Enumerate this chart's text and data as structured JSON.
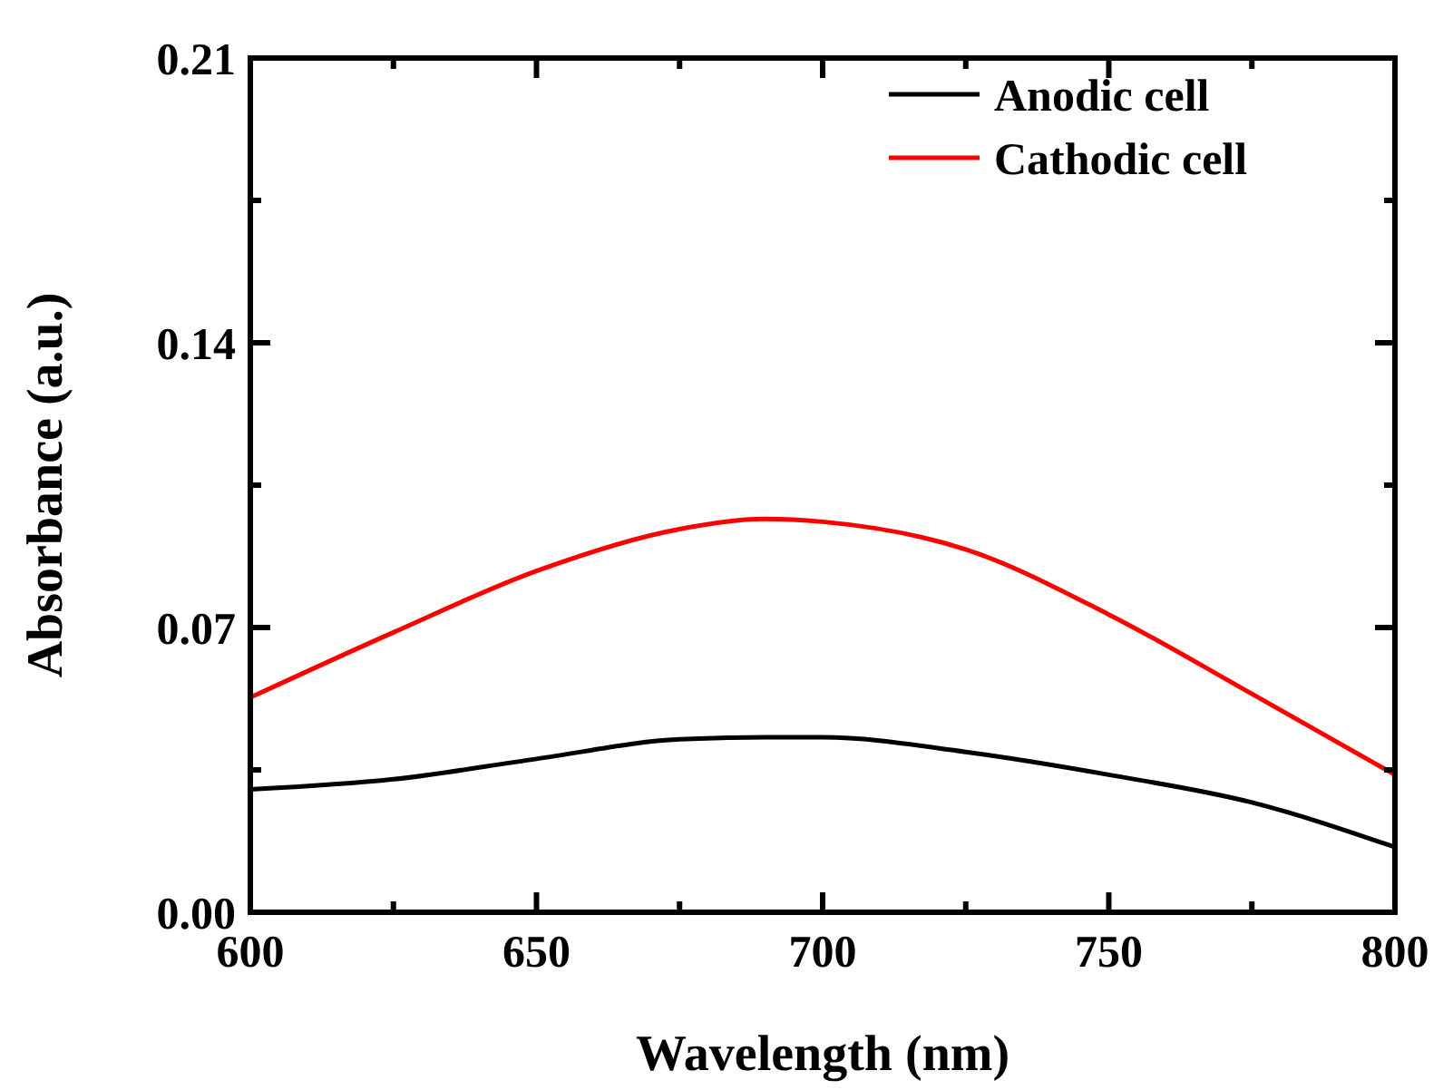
{
  "chart_data": {
    "type": "line",
    "xlabel": "Wavelength (nm)",
    "ylabel": "Absorbance (a.u.)",
    "xlim": [
      600,
      800
    ],
    "xticks": [
      600,
      {
        "value": 625,
        "label": null
      },
      650,
      {
        "value": 675,
        "label": null
      },
      700,
      {
        "value": 725,
        "label": null
      },
      750,
      {
        "value": 775,
        "label": null
      },
      800
    ],
    "ylim": [
      0,
      0.21
    ],
    "yticks": [
      {
        "value": 0,
        "label": "0.00"
      },
      {
        "value": 0.035,
        "label": null
      },
      0.07,
      {
        "value": 0.105,
        "label": null
      },
      0.14,
      {
        "value": 0.175,
        "label": null
      },
      0.21
    ],
    "legend": "top right",
    "line_style": "solid",
    "marker": "none",
    "series": [
      {
        "name": "Anodic cell",
        "color": "#000000",
        "x": [
          600,
          625,
          650,
          675,
          690,
          700,
          725,
          750,
          775,
          800
        ],
        "values": [
          0.0302,
          0.0327,
          0.0377,
          0.0425,
          0.043,
          0.043,
          0.0394,
          0.0338,
          0.027,
          0.016
        ]
      },
      {
        "name": "Cathodic cell",
        "color": "#ff0000",
        "x": [
          600,
          625,
          650,
          675,
          690,
          700,
          725,
          750,
          775,
          800
        ],
        "values": [
          0.0528,
          0.0688,
          0.0839,
          0.0942,
          0.0967,
          0.096,
          0.0892,
          0.0732,
          0.0537,
          0.0338
        ]
      }
    ]
  }
}
